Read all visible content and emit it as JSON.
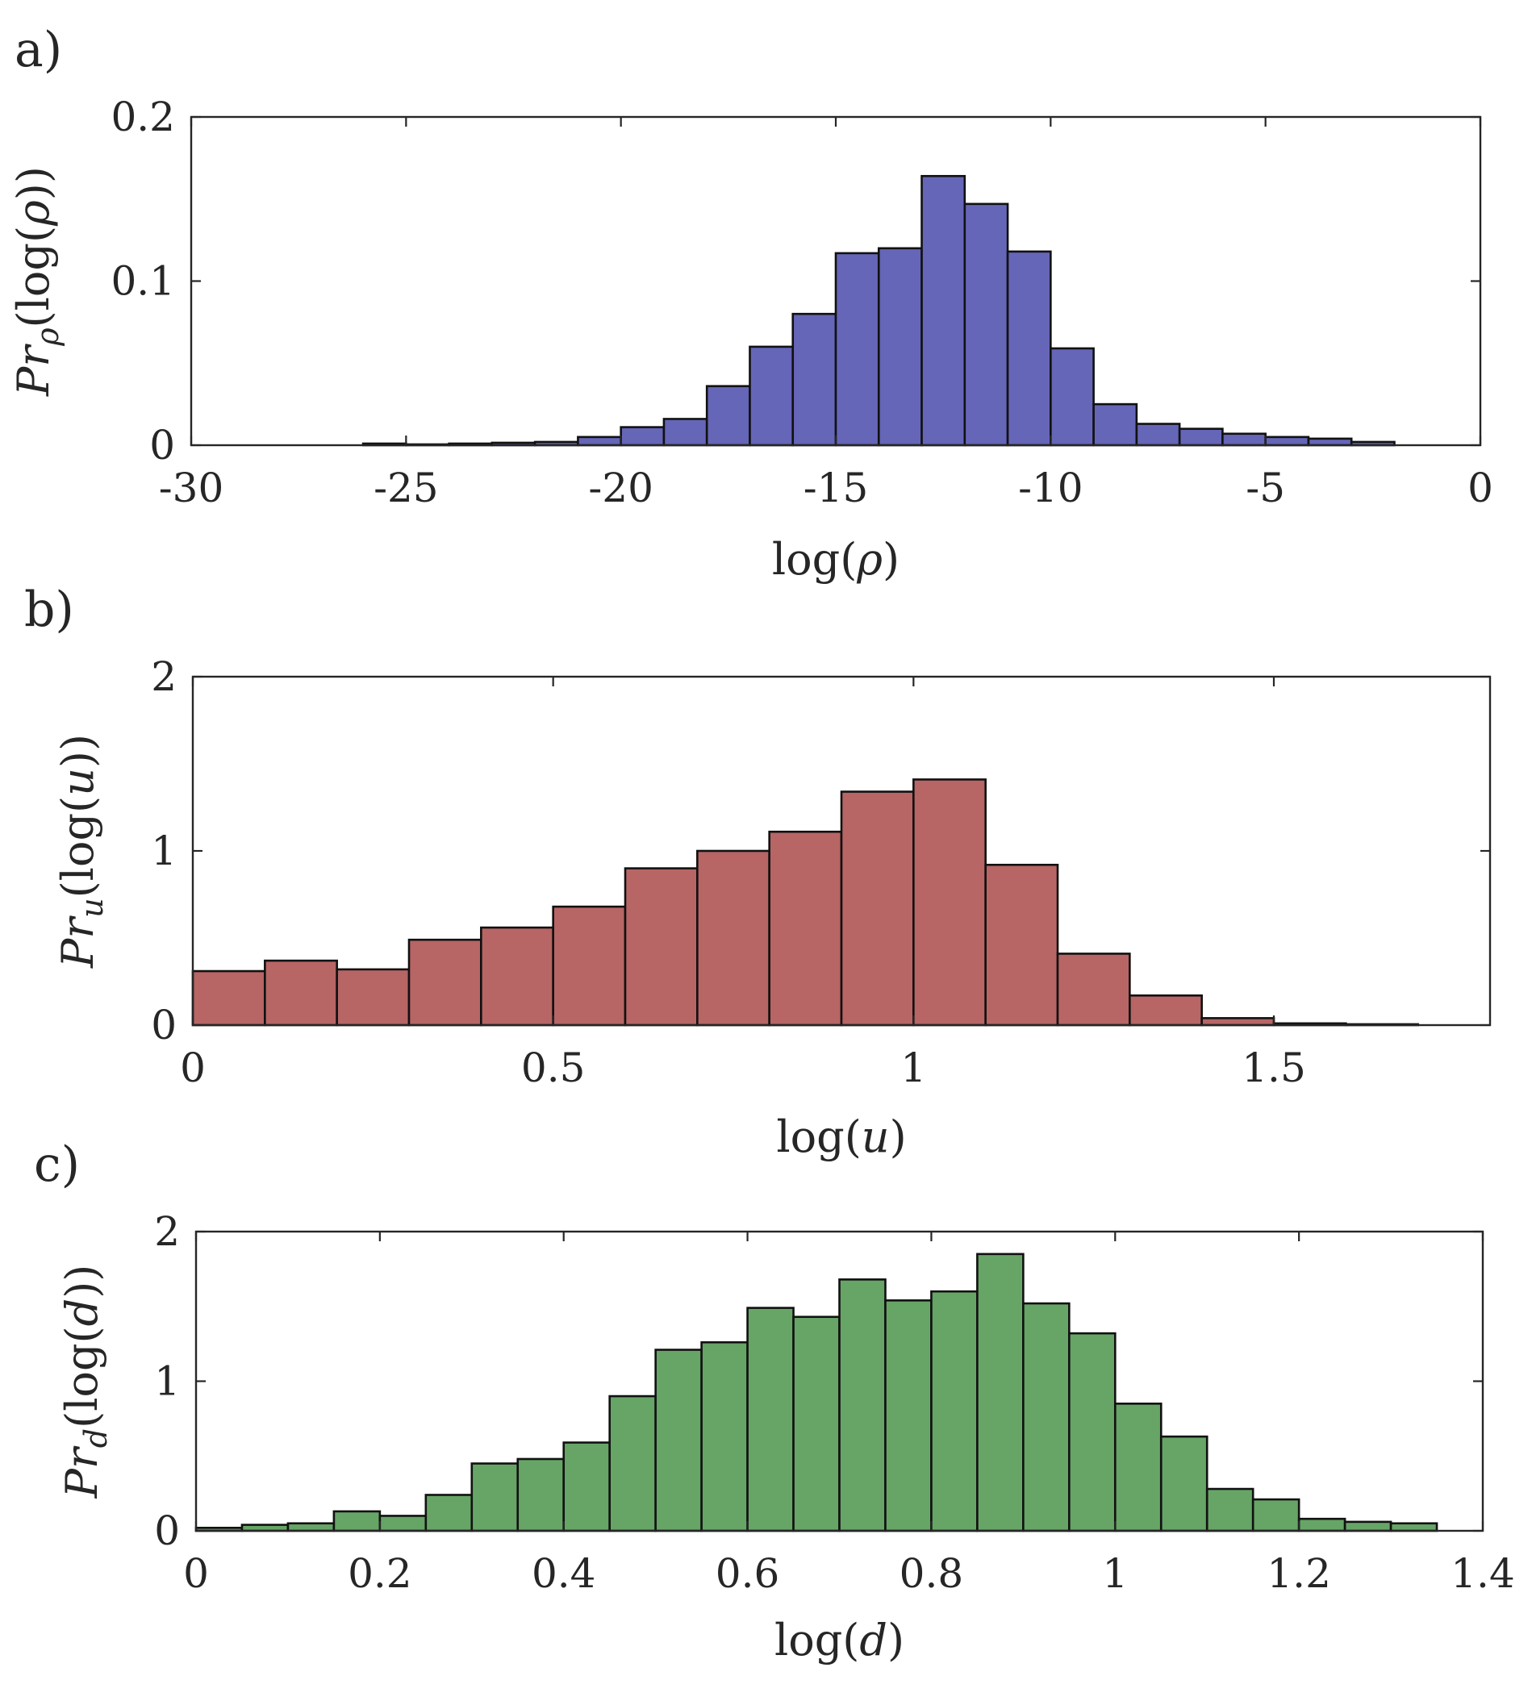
{
  "chart_data": [
    {
      "type": "bar",
      "panel_label": "a)",
      "xlabel": "log(ρ)",
      "ylabel": "Pr_ρ(log(ρ))",
      "xlabel_parts": [
        {
          "t": "log("
        },
        {
          "t": "ρ",
          "i": true
        },
        {
          "t": ")"
        }
      ],
      "ylabel_parts": [
        {
          "t": "Pr",
          "i": true
        },
        {
          "t": "ρ",
          "i": true,
          "sub": true
        },
        {
          "t": "(log("
        },
        {
          "t": "ρ",
          "i": true
        },
        {
          "t": "))"
        }
      ],
      "xlim": [
        -30,
        0
      ],
      "ylim": [
        0,
        0.2
      ],
      "xticks": [
        -30,
        -25,
        -20,
        -15,
        -10,
        -5,
        0
      ],
      "xtick_labels": [
        "-30",
        "-25",
        "-20",
        "-15",
        "-10",
        "-5",
        "0"
      ],
      "yticks": [
        0,
        0.1,
        0.2
      ],
      "ytick_labels": [
        "0",
        "0.1",
        "0.2"
      ],
      "color": "#6566b8",
      "bins": [
        {
          "x0": -26,
          "x1": -25,
          "v": 0.001
        },
        {
          "x0": -25,
          "x1": -24,
          "v": 0.0005
        },
        {
          "x0": -24,
          "x1": -23,
          "v": 0.001
        },
        {
          "x0": -23,
          "x1": -22,
          "v": 0.0015
        },
        {
          "x0": -22,
          "x1": -21,
          "v": 0.002
        },
        {
          "x0": -21,
          "x1": -20,
          "v": 0.005
        },
        {
          "x0": -20,
          "x1": -19,
          "v": 0.011
        },
        {
          "x0": -19,
          "x1": -18,
          "v": 0.016
        },
        {
          "x0": -18,
          "x1": -17,
          "v": 0.036
        },
        {
          "x0": -17,
          "x1": -16,
          "v": 0.06
        },
        {
          "x0": -16,
          "x1": -15,
          "v": 0.08
        },
        {
          "x0": -15,
          "x1": -14,
          "v": 0.117
        },
        {
          "x0": -14,
          "x1": -13,
          "v": 0.12
        },
        {
          "x0": -13,
          "x1": -12,
          "v": 0.164
        },
        {
          "x0": -12,
          "x1": -11,
          "v": 0.147
        },
        {
          "x0": -11,
          "x1": -10,
          "v": 0.118
        },
        {
          "x0": -10,
          "x1": -9,
          "v": 0.059
        },
        {
          "x0": -9,
          "x1": -8,
          "v": 0.025
        },
        {
          "x0": -8,
          "x1": -7,
          "v": 0.013
        },
        {
          "x0": -7,
          "x1": -6,
          "v": 0.01
        },
        {
          "x0": -6,
          "x1": -5,
          "v": 0.007
        },
        {
          "x0": -5,
          "x1": -4,
          "v": 0.005
        },
        {
          "x0": -4,
          "x1": -3,
          "v": 0.004
        },
        {
          "x0": -3,
          "x1": -2,
          "v": 0.002
        }
      ]
    },
    {
      "type": "bar",
      "panel_label": "b)",
      "xlabel": "log(u)",
      "ylabel": "Pr_u(log(u))",
      "xlabel_parts": [
        {
          "t": "log("
        },
        {
          "t": "u",
          "i": true
        },
        {
          "t": ")"
        }
      ],
      "ylabel_parts": [
        {
          "t": "Pr",
          "i": true
        },
        {
          "t": "u",
          "i": true,
          "sub": true
        },
        {
          "t": "(log("
        },
        {
          "t": "u",
          "i": true
        },
        {
          "t": "))"
        }
      ],
      "xlim": [
        0,
        1.8
      ],
      "ylim": [
        0,
        2
      ],
      "xticks": [
        0,
        0.5,
        1,
        1.5
      ],
      "xtick_labels": [
        "0",
        "0.5",
        "1",
        "1.5"
      ],
      "yticks": [
        0,
        1,
        2
      ],
      "ytick_labels": [
        "0",
        "1",
        "2"
      ],
      "color": "#b86565",
      "bins": [
        {
          "x0": 0.0,
          "x1": 0.1,
          "v": 0.31
        },
        {
          "x0": 0.1,
          "x1": 0.2,
          "v": 0.37
        },
        {
          "x0": 0.2,
          "x1": 0.3,
          "v": 0.32
        },
        {
          "x0": 0.3,
          "x1": 0.4,
          "v": 0.49
        },
        {
          "x0": 0.4,
          "x1": 0.5,
          "v": 0.56
        },
        {
          "x0": 0.5,
          "x1": 0.6,
          "v": 0.68
        },
        {
          "x0": 0.6,
          "x1": 0.7,
          "v": 0.9
        },
        {
          "x0": 0.7,
          "x1": 0.8,
          "v": 1.0
        },
        {
          "x0": 0.8,
          "x1": 0.9,
          "v": 1.11
        },
        {
          "x0": 0.9,
          "x1": 1.0,
          "v": 1.34
        },
        {
          "x0": 1.0,
          "x1": 1.1,
          "v": 1.41
        },
        {
          "x0": 1.1,
          "x1": 1.2,
          "v": 0.92
        },
        {
          "x0": 1.2,
          "x1": 1.3,
          "v": 0.41
        },
        {
          "x0": 1.3,
          "x1": 1.4,
          "v": 0.17
        },
        {
          "x0": 1.4,
          "x1": 1.5,
          "v": 0.04
        },
        {
          "x0": 1.5,
          "x1": 1.6,
          "v": 0.01
        },
        {
          "x0": 1.6,
          "x1": 1.7,
          "v": 0.005
        }
      ]
    },
    {
      "type": "bar",
      "panel_label": "c)",
      "xlabel": "log(d)",
      "ylabel": "Pr_d(log(d))",
      "xlabel_parts": [
        {
          "t": "log("
        },
        {
          "t": "d",
          "i": true
        },
        {
          "t": ")"
        }
      ],
      "ylabel_parts": [
        {
          "t": "Pr",
          "i": true
        },
        {
          "t": "d",
          "i": true,
          "sub": true
        },
        {
          "t": "(log("
        },
        {
          "t": "d",
          "i": true
        },
        {
          "t": "))"
        }
      ],
      "xlim": [
        0,
        1.4
      ],
      "ylim": [
        0,
        2
      ],
      "xticks": [
        0,
        0.2,
        0.4,
        0.6,
        0.8,
        1,
        1.2,
        1.4
      ],
      "xtick_labels": [
        "0",
        "0.2",
        "0.4",
        "0.6",
        "0.8",
        "1",
        "1.2",
        "1.4"
      ],
      "yticks": [
        0,
        1,
        2
      ],
      "ytick_labels": [
        "0",
        "1",
        "2"
      ],
      "color": "#66a566",
      "bins": [
        {
          "x0": 0.0,
          "x1": 0.05,
          "v": 0.02
        },
        {
          "x0": 0.05,
          "x1": 0.1,
          "v": 0.04
        },
        {
          "x0": 0.1,
          "x1": 0.15,
          "v": 0.05
        },
        {
          "x0": 0.15,
          "x1": 0.2,
          "v": 0.13
        },
        {
          "x0": 0.2,
          "x1": 0.25,
          "v": 0.1
        },
        {
          "x0": 0.25,
          "x1": 0.3,
          "v": 0.24
        },
        {
          "x0": 0.3,
          "x1": 0.35,
          "v": 0.45
        },
        {
          "x0": 0.35,
          "x1": 0.4,
          "v": 0.48
        },
        {
          "x0": 0.4,
          "x1": 0.45,
          "v": 0.59
        },
        {
          "x0": 0.45,
          "x1": 0.5,
          "v": 0.9
        },
        {
          "x0": 0.5,
          "x1": 0.55,
          "v": 1.21
        },
        {
          "x0": 0.55,
          "x1": 0.6,
          "v": 1.26
        },
        {
          "x0": 0.6,
          "x1": 0.65,
          "v": 1.49
        },
        {
          "x0": 0.65,
          "x1": 0.7,
          "v": 1.43
        },
        {
          "x0": 0.7,
          "x1": 0.75,
          "v": 1.68
        },
        {
          "x0": 0.75,
          "x1": 0.8,
          "v": 1.54
        },
        {
          "x0": 0.8,
          "x1": 0.85,
          "v": 1.6
        },
        {
          "x0": 0.85,
          "x1": 0.9,
          "v": 1.85
        },
        {
          "x0": 0.9,
          "x1": 0.95,
          "v": 1.52
        },
        {
          "x0": 0.95,
          "x1": 1.0,
          "v": 1.32
        },
        {
          "x0": 1.0,
          "x1": 1.05,
          "v": 0.85
        },
        {
          "x0": 1.05,
          "x1": 1.1,
          "v": 0.63
        },
        {
          "x0": 1.1,
          "x1": 1.15,
          "v": 0.28
        },
        {
          "x0": 1.15,
          "x1": 1.2,
          "v": 0.21
        },
        {
          "x0": 1.2,
          "x1": 1.25,
          "v": 0.08
        },
        {
          "x0": 1.25,
          "x1": 1.3,
          "v": 0.06
        },
        {
          "x0": 1.3,
          "x1": 1.35,
          "v": 0.05
        }
      ]
    }
  ]
}
